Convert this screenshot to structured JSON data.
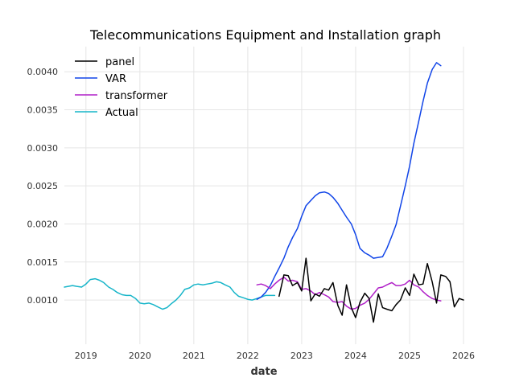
{
  "chart_data": {
    "type": "line",
    "title": "Telecommunications Equipment and Installation graph",
    "xlabel": "date",
    "ylabel": "",
    "xlim": [
      2018.6,
      2026.0
    ],
    "ylim": [
      0.00042,
      0.00433
    ],
    "grid": true,
    "legend_position": "top-left",
    "x_ticks": [
      2019,
      2020,
      2021,
      2022,
      2023,
      2024,
      2025,
      2026
    ],
    "x_tick_labels": [
      "2019",
      "2020",
      "2021",
      "2022",
      "2023",
      "2024",
      "2025",
      "2026"
    ],
    "y_ticks": [
      0.001,
      0.0015,
      0.002,
      0.0025,
      0.003,
      0.0035,
      0.004
    ],
    "y_tick_labels": [
      "0.0010",
      "0.0015",
      "0.0020",
      "0.0025",
      "0.0030",
      "0.0035",
      "0.0040"
    ],
    "series": [
      {
        "name": "panel",
        "color": "#000000",
        "x": [
          2022.58,
          2022.67,
          2022.75,
          2022.83,
          2022.92,
          2023.0,
          2023.08,
          2023.17,
          2023.25,
          2023.33,
          2023.42,
          2023.5,
          2023.58,
          2023.67,
          2023.75,
          2023.83,
          2023.92,
          2024.0,
          2024.08,
          2024.17,
          2024.25,
          2024.33,
          2024.42,
          2024.5,
          2024.58,
          2024.67,
          2024.75,
          2024.83,
          2024.92,
          2025.0,
          2025.08,
          2025.17,
          2025.25,
          2025.33,
          2025.42,
          2025.5,
          2025.58,
          2025.67,
          2025.75,
          2025.83,
          2025.92,
          2026.0
        ],
        "y": [
          0.00105,
          0.00133,
          0.00132,
          0.00119,
          0.00123,
          0.00112,
          0.00155,
          0.00099,
          0.00108,
          0.00105,
          0.00115,
          0.00113,
          0.00123,
          0.00093,
          0.0008,
          0.0012,
          0.0009,
          0.00077,
          0.00097,
          0.00109,
          0.00102,
          0.00071,
          0.00108,
          0.0009,
          0.00088,
          0.00086,
          0.00094,
          0.001,
          0.00116,
          0.00106,
          0.00134,
          0.0012,
          0.00121,
          0.00148,
          0.00124,
          0.00096,
          0.00133,
          0.00131,
          0.00124,
          0.00091,
          0.00102,
          0.001
        ]
      },
      {
        "name": "VAR",
        "color": "#1145e8",
        "x": [
          2022.17,
          2022.25,
          2022.33,
          2022.42,
          2022.5,
          2022.58,
          2022.67,
          2022.75,
          2022.83,
          2022.92,
          2023.0,
          2023.08,
          2023.17,
          2023.25,
          2023.33,
          2023.42,
          2023.5,
          2023.58,
          2023.67,
          2023.75,
          2023.83,
          2023.92,
          2024.0,
          2024.08,
          2024.17,
          2024.25,
          2024.33,
          2024.42,
          2024.5,
          2024.58,
          2024.67,
          2024.75,
          2024.83,
          2024.92,
          2025.0,
          2025.08,
          2025.17,
          2025.25,
          2025.33,
          2025.42,
          2025.5,
          2025.58
        ],
        "y": [
          0.00101,
          0.00104,
          0.0011,
          0.00119,
          0.00131,
          0.00142,
          0.00155,
          0.0017,
          0.00182,
          0.00194,
          0.0021,
          0.00224,
          0.00231,
          0.00237,
          0.00241,
          0.00242,
          0.0024,
          0.00235,
          0.00227,
          0.00218,
          0.00209,
          0.002,
          0.00186,
          0.00168,
          0.00162,
          0.00159,
          0.00155,
          0.00156,
          0.00157,
          0.00168,
          0.00184,
          0.00199,
          0.00223,
          0.0025,
          0.00276,
          0.00306,
          0.00335,
          0.00361,
          0.00385,
          0.00403,
          0.00412,
          0.00408
        ]
      },
      {
        "name": "transformer",
        "color": "#b020c8",
        "x": [
          2022.17,
          2022.25,
          2022.33,
          2022.42,
          2022.5,
          2022.58,
          2022.67,
          2022.75,
          2022.83,
          2022.92,
          2023.0,
          2023.08,
          2023.17,
          2023.25,
          2023.33,
          2023.42,
          2023.5,
          2023.58,
          2023.67,
          2023.75,
          2023.83,
          2023.92,
          2024.0,
          2024.08,
          2024.17,
          2024.25,
          2024.33,
          2024.42,
          2024.5,
          2024.58,
          2024.67,
          2024.75,
          2024.83,
          2024.92,
          2025.0,
          2025.08,
          2025.17,
          2025.25,
          2025.33,
          2025.42,
          2025.5,
          2025.58
        ],
        "y": [
          0.0012,
          0.00121,
          0.00119,
          0.00115,
          0.00121,
          0.00126,
          0.0013,
          0.00125,
          0.00126,
          0.00124,
          0.00114,
          0.00115,
          0.00112,
          0.00107,
          0.0011,
          0.00107,
          0.00104,
          0.00098,
          0.00097,
          0.00098,
          0.00092,
          0.00088,
          0.00089,
          0.00093,
          0.00096,
          0.00101,
          0.00108,
          0.00116,
          0.00117,
          0.0012,
          0.00123,
          0.00119,
          0.00119,
          0.00121,
          0.00126,
          0.0012,
          0.00117,
          0.00111,
          0.00106,
          0.00102,
          0.001,
          0.00099
        ]
      },
      {
        "name": "Actual",
        "color": "#17b5c9",
        "x": [
          2018.6,
          2018.67,
          2018.75,
          2018.83,
          2018.92,
          2019.0,
          2019.08,
          2019.17,
          2019.25,
          2019.33,
          2019.42,
          2019.5,
          2019.58,
          2019.67,
          2019.75,
          2019.83,
          2019.92,
          2020.0,
          2020.08,
          2020.17,
          2020.25,
          2020.33,
          2020.42,
          2020.5,
          2020.58,
          2020.67,
          2020.75,
          2020.83,
          2020.92,
          2021.0,
          2021.08,
          2021.17,
          2021.25,
          2021.33,
          2021.42,
          2021.5,
          2021.58,
          2021.67,
          2021.75,
          2021.83,
          2021.92,
          2022.0,
          2022.08,
          2022.17,
          2022.25,
          2022.33,
          2022.42,
          2022.5
        ],
        "y": [
          0.00117,
          0.00118,
          0.00119,
          0.00118,
          0.00117,
          0.00121,
          0.00127,
          0.00128,
          0.00126,
          0.00123,
          0.00117,
          0.00114,
          0.0011,
          0.00107,
          0.00106,
          0.00106,
          0.00102,
          0.00096,
          0.00095,
          0.00096,
          0.00094,
          0.00091,
          0.00088,
          0.0009,
          0.00095,
          0.001,
          0.00106,
          0.00114,
          0.00116,
          0.0012,
          0.00121,
          0.0012,
          0.00121,
          0.00122,
          0.00124,
          0.00123,
          0.0012,
          0.00117,
          0.0011,
          0.00105,
          0.00103,
          0.00101,
          0.001,
          0.00102,
          0.00104,
          0.00106,
          0.00106,
          0.00106
        ]
      }
    ]
  }
}
